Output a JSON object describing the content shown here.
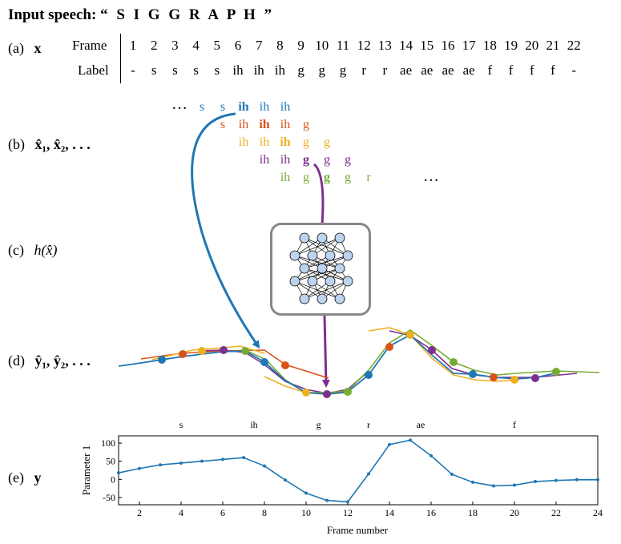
{
  "header": {
    "prefix": "Input speech:",
    "word": "“ S I G G R A P H ”"
  },
  "rows": {
    "a": {
      "tag": "(a)",
      "symbol": "x"
    },
    "b": {
      "tag": "(b)",
      "symbol": "x̂₁, x̂₂, . . ."
    },
    "c": {
      "tag": "(c)",
      "symbol": "h(x̂)"
    },
    "d": {
      "tag": "(d)",
      "symbol": "ŷ₁, ŷ₂, . . ."
    },
    "e": {
      "tag": "(e)",
      "symbol": "y"
    }
  },
  "table": {
    "frame_header": "Frame",
    "label_header": "Label",
    "frames": [
      "1",
      "2",
      "3",
      "4",
      "5",
      "6",
      "7",
      "8",
      "9",
      "10",
      "11",
      "12",
      "13",
      "14",
      "15",
      "16",
      "17",
      "18",
      "19",
      "20",
      "21",
      "22"
    ],
    "labels": [
      "-",
      "s",
      "s",
      "s",
      "s",
      "ih",
      "ih",
      "ih",
      "g",
      "g",
      "g",
      "r",
      "r",
      "ae",
      "ae",
      "ae",
      "ae",
      "f",
      "f",
      "f",
      "f",
      "-"
    ]
  },
  "windows": {
    "leading_ellipsis": "…",
    "trailing_ellipsis": "…",
    "rows": [
      {
        "color": "#1f77b4",
        "tokens": [
          "s",
          "s",
          "ih",
          "ih",
          "ih"
        ],
        "bold_index": 2
      },
      {
        "color": "#d95319",
        "tokens": [
          "s",
          "ih",
          "ih",
          "ih",
          "g"
        ],
        "bold_index": 2
      },
      {
        "color": "#edb120",
        "tokens": [
          "ih",
          "ih",
          "ih",
          "g",
          "g"
        ],
        "bold_index": 2
      },
      {
        "color": "#7e2f8e",
        "tokens": [
          "ih",
          "ih",
          "g",
          "g",
          "g"
        ],
        "bold_index": 2
      },
      {
        "color": "#77ac30",
        "tokens": [
          "ih",
          "g",
          "g",
          "g",
          "r"
        ],
        "bold_index": 2
      }
    ]
  },
  "colors": {
    "blue": "#1f77b4",
    "orange": "#d95319",
    "yellow": "#edb120",
    "purple": "#7e2f8e",
    "green": "#77ac30",
    "box_border": "#888888",
    "neuron_fill": "#bcd4ee"
  },
  "icons": {
    "network": "neural-network-icon"
  },
  "chart_data": {
    "type": "line",
    "title": "",
    "xlabel": "Frame number",
    "ylabel": "Parameter 1",
    "xlim": [
      1,
      24
    ],
    "ylim": [
      -70,
      120
    ],
    "xticks": [
      2,
      4,
      6,
      8,
      10,
      12,
      14,
      16,
      18,
      20,
      22,
      24
    ],
    "yticks": [
      -50,
      0,
      50,
      100
    ],
    "grid": false,
    "segment_labels": [
      {
        "text": "s",
        "x": 4
      },
      {
        "text": "ih",
        "x": 7.5
      },
      {
        "text": "g",
        "x": 10.6
      },
      {
        "text": "r",
        "x": 13
      },
      {
        "text": "ae",
        "x": 15.5
      },
      {
        "text": "f",
        "x": 20
      }
    ],
    "series": [
      {
        "x": [
          1,
          2,
          3,
          4,
          5,
          6,
          7,
          8,
          9,
          10,
          11,
          12,
          13,
          14,
          15,
          16,
          17,
          18,
          19,
          20,
          21,
          22,
          23,
          24
        ],
        "values": [
          18,
          30,
          40,
          45,
          50,
          55,
          60,
          37,
          -2,
          -38,
          -58,
          -62,
          15,
          96,
          108,
          65,
          14,
          -8,
          -18,
          -16,
          -6,
          -3,
          -1,
          -1
        ]
      }
    ]
  }
}
